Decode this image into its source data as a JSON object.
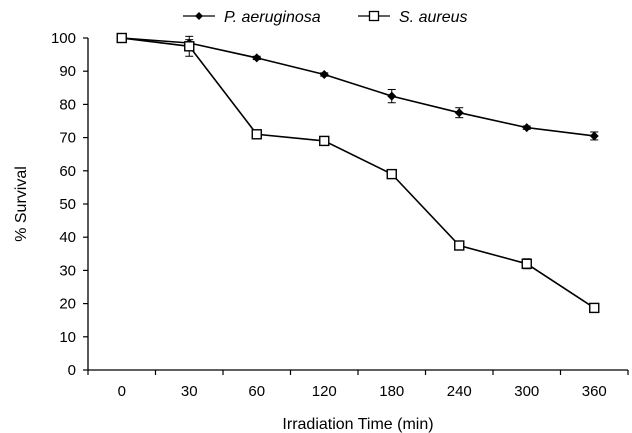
{
  "chart_data": {
    "type": "line",
    "categories": [
      "0",
      "30",
      "60",
      "120",
      "180",
      "240",
      "300",
      "360"
    ],
    "xlabel": "Irradiation Time (min)",
    "ylabel": "% Survival",
    "ylim": [
      0,
      100
    ],
    "yticks": [
      0,
      10,
      20,
      30,
      40,
      50,
      60,
      70,
      80,
      90,
      100
    ],
    "grid": false,
    "legend_position": "top",
    "series": [
      {
        "name": "P. aeruginosa",
        "marker": "diamond-filled",
        "color": "#000000",
        "values": [
          100,
          98.5,
          94,
          89,
          82.5,
          77.5,
          73,
          70.5
        ],
        "errors": [
          0,
          1,
          0.5,
          0.5,
          2,
          1.5,
          0.5,
          1.2
        ]
      },
      {
        "name": "S. aureus",
        "marker": "square-open",
        "color": "#000000",
        "values": [
          100,
          97.5,
          71,
          69,
          59,
          37.5,
          32,
          18.7
        ],
        "errors": [
          0,
          3,
          0.5,
          0.5,
          0.5,
          0.5,
          1.5,
          0.5
        ]
      }
    ]
  }
}
